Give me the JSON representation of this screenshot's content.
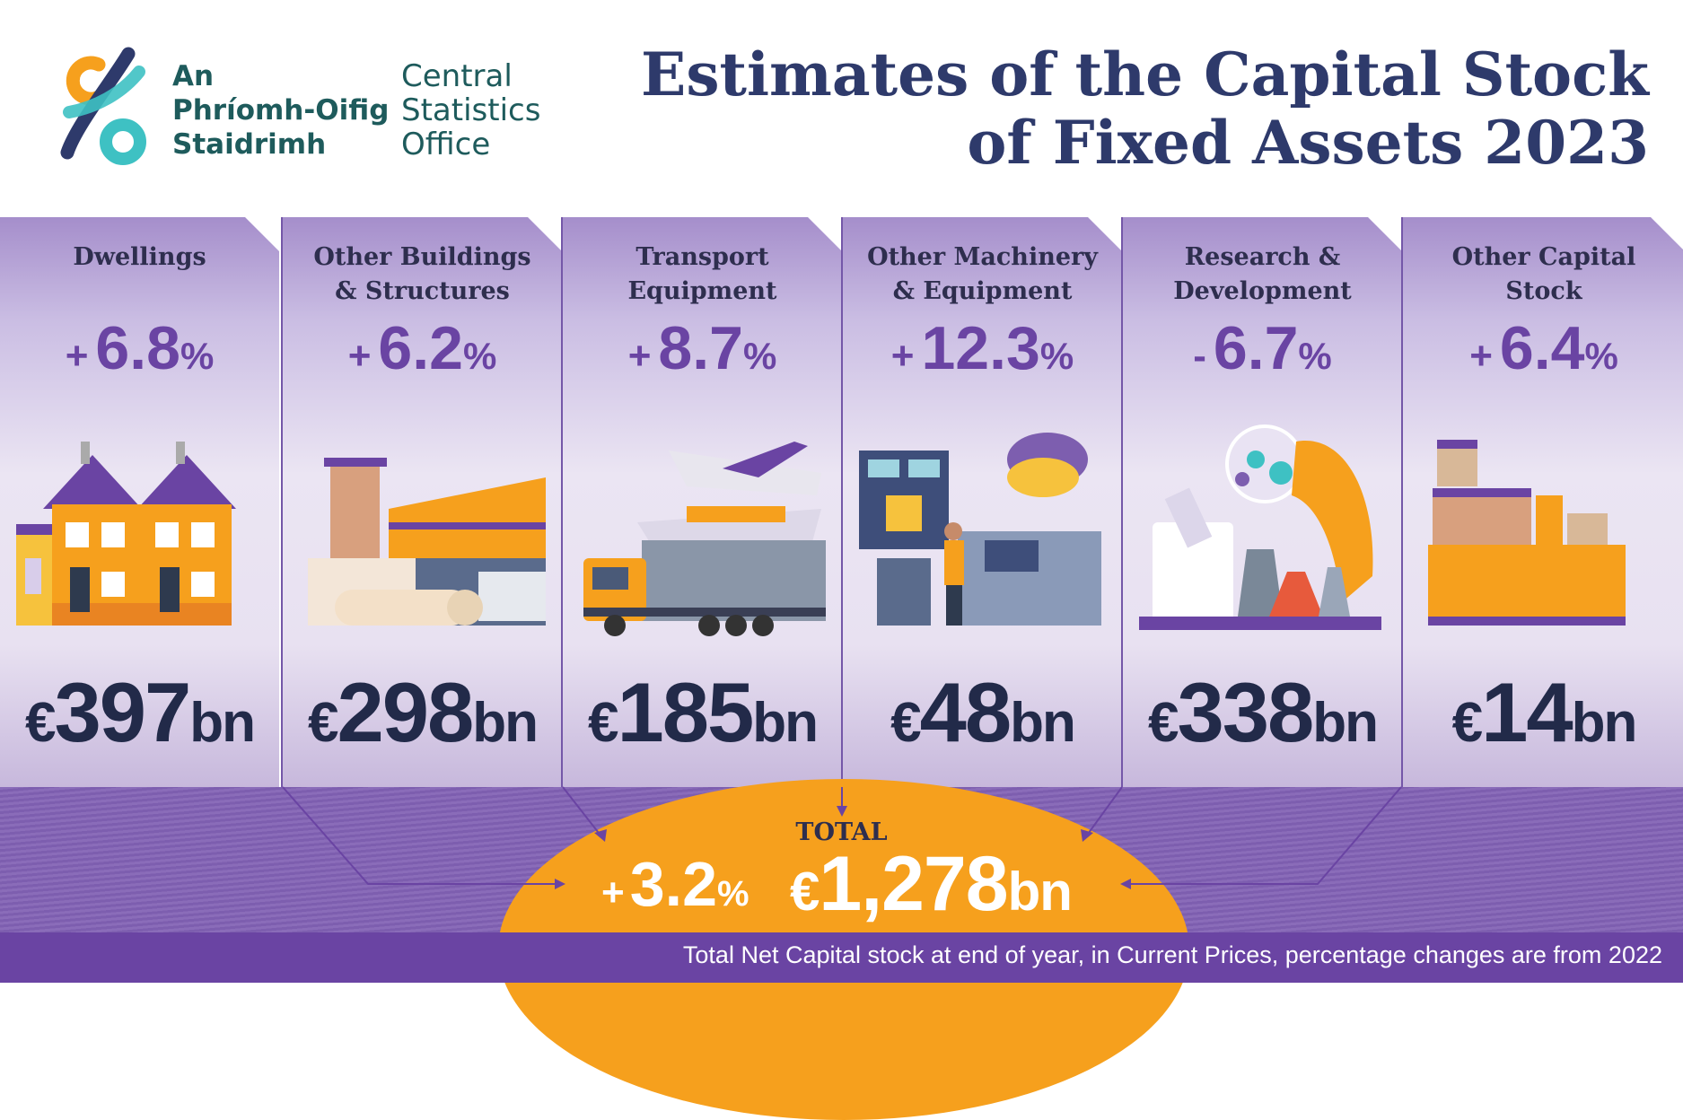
{
  "header": {
    "org_irish": [
      "An",
      "Phríomh-Oifig",
      "Staidrimh"
    ],
    "org_english": [
      "Central",
      "Statistics",
      "Office"
    ],
    "title_lines": [
      "Estimates of the Capital Stock",
      "of Fixed Assets 2023"
    ]
  },
  "panels": [
    {
      "name": "Dwellings",
      "change_sign": "+",
      "change_value": "6.8",
      "change_unit": "%",
      "value_currency": "€",
      "value_number": "397",
      "value_unit": "bn"
    },
    {
      "name": "Other Buildings & Structures",
      "change_sign": "+",
      "change_value": "6.2",
      "change_unit": "%",
      "value_currency": "€",
      "value_number": "298",
      "value_unit": "bn"
    },
    {
      "name": "Transport Equipment",
      "change_sign": "+",
      "change_value": "8.7",
      "change_unit": "%",
      "value_currency": "€",
      "value_number": "185",
      "value_unit": "bn"
    },
    {
      "name": "Other Machinery & Equipment",
      "change_sign": "+",
      "change_value": "12.3",
      "change_unit": "%",
      "value_currency": "€",
      "value_number": "48",
      "value_unit": "bn"
    },
    {
      "name": "Research & Development",
      "change_sign": "-",
      "change_value": "6.7",
      "change_unit": "%",
      "value_currency": "€",
      "value_number": "338",
      "value_unit": "bn"
    },
    {
      "name": "Other Capital Stock",
      "change_sign": "+",
      "change_value": "6.4",
      "change_unit": "%",
      "value_currency": "€",
      "value_number": "14",
      "value_unit": "bn"
    }
  ],
  "total": {
    "label": "TOTAL",
    "change_sign": "+",
    "change_value": "3.2",
    "change_unit": "%",
    "value_currency": "€",
    "value_number": "1,278",
    "value_unit": "bn"
  },
  "footnote": "Total Net Capital stock at end of year, in Current Prices, percentage changes are from 2022",
  "colors": {
    "brand_purple": "#6a44a3",
    "title_navy": "#2e3a6b",
    "total_orange": "#f6a01d",
    "logo_orange": "#f6a01d",
    "logo_teal": "#3ec1c3",
    "logo_navy": "#2e3a6b"
  },
  "icons": [
    "csO-logo-icon",
    "houses-illustration",
    "industrial-buildings-illustration",
    "transport-illustration",
    "machinery-illustration",
    "laboratory-illustration",
    "containers-illustration"
  ]
}
